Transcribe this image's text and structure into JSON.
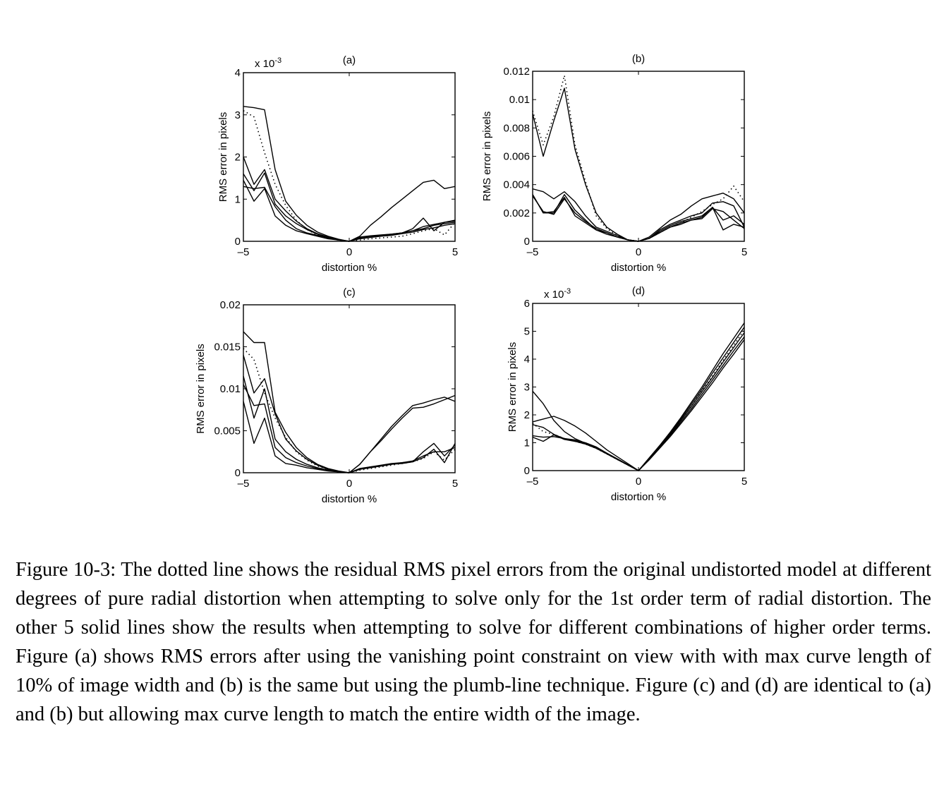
{
  "chart_data": [
    {
      "type": "line",
      "title": "(a)",
      "xlabel": "distortion %",
      "ylabel": "RMS error in pixels",
      "scale_note": "x 10",
      "scale_exp": "-3",
      "xlim": [
        -5,
        5
      ],
      "ylim": [
        0,
        4
      ],
      "xticks": [
        "-5",
        "0",
        "5"
      ],
      "yticks": [
        "0",
        "1",
        "2",
        "3",
        "4"
      ],
      "ytick_values": [
        0,
        1,
        2,
        3,
        4
      ],
      "x": [
        -5,
        -4.5,
        -4,
        -3.5,
        -3,
        -2.5,
        -2,
        -1.5,
        -1,
        -0.5,
        0,
        0.5,
        1,
        1.5,
        2,
        2.5,
        3,
        3.5,
        4,
        4.5,
        5
      ],
      "series": [
        {
          "style": "dotted",
          "values": [
            3.1,
            2.95,
            2.1,
            1.35,
            0.85,
            0.5,
            0.28,
            0.15,
            0.07,
            0.03,
            0,
            0.03,
            0.06,
            0.08,
            0.1,
            0.12,
            0.18,
            0.25,
            0.3,
            0.15,
            0.45
          ]
        },
        {
          "style": "solid",
          "values": [
            3.2,
            3.17,
            3.12,
            1.7,
            0.95,
            0.62,
            0.38,
            0.22,
            0.12,
            0.05,
            0,
            0.12,
            0.38,
            0.58,
            0.8,
            1.0,
            1.2,
            1.4,
            1.45,
            1.25,
            1.3
          ]
        },
        {
          "style": "solid",
          "values": [
            2.0,
            1.35,
            1.7,
            1.0,
            0.72,
            0.48,
            0.3,
            0.18,
            0.1,
            0.04,
            0,
            0.1,
            0.13,
            0.15,
            0.17,
            0.2,
            0.3,
            0.55,
            0.25,
            0.45,
            0.5
          ]
        },
        {
          "style": "solid",
          "values": [
            1.6,
            1.2,
            1.62,
            0.88,
            0.6,
            0.42,
            0.28,
            0.17,
            0.09,
            0.04,
            0,
            0.08,
            0.12,
            0.14,
            0.17,
            0.2,
            0.25,
            0.35,
            0.4,
            0.45,
            0.48
          ]
        },
        {
          "style": "solid",
          "values": [
            1.45,
            0.95,
            1.25,
            0.6,
            0.38,
            0.25,
            0.18,
            0.12,
            0.06,
            0.03,
            0,
            0.07,
            0.1,
            0.13,
            0.16,
            0.2,
            0.25,
            0.3,
            0.38,
            0.42,
            0.45
          ]
        },
        {
          "style": "solid",
          "values": [
            1.3,
            1.25,
            1.28,
            0.82,
            0.5,
            0.3,
            0.2,
            0.14,
            0.08,
            0.03,
            0,
            0.06,
            0.09,
            0.12,
            0.14,
            0.18,
            0.22,
            0.28,
            0.32,
            0.38,
            0.42
          ]
        }
      ]
    },
    {
      "type": "line",
      "title": "(b)",
      "xlabel": "distortion %",
      "ylabel": "RMS error in pixels",
      "xlim": [
        -5,
        5
      ],
      "ylim": [
        0,
        0.012
      ],
      "xticks": [
        "-5",
        "0",
        "5"
      ],
      "yticks": [
        "0",
        "0.002",
        "0.004",
        "0.006",
        "0.008",
        "0.01",
        "0.012"
      ],
      "ytick_values": [
        0,
        0.002,
        0.004,
        0.006,
        0.008,
        0.01,
        0.012
      ],
      "x": [
        -5,
        -4.5,
        -4,
        -3.5,
        -3,
        -2.5,
        -2,
        -1.5,
        -1,
        -0.5,
        0,
        0.5,
        1,
        1.5,
        2,
        2.5,
        3,
        3.5,
        4,
        4.5,
        5
      ],
      "series": [
        {
          "style": "dotted",
          "values": [
            0.0092,
            0.0068,
            0.0088,
            0.0117,
            0.0068,
            0.0042,
            0.0018,
            0.0009,
            0.0004,
            0.0001,
            0,
            0.0002,
            0.0006,
            0.001,
            0.0013,
            0.0017,
            0.0021,
            0.0026,
            0.003,
            0.0039,
            0.0028
          ]
        },
        {
          "style": "solid",
          "values": [
            0.009,
            0.006,
            0.0085,
            0.0108,
            0.0065,
            0.004,
            0.002,
            0.001,
            0.0005,
            0.0001,
            0,
            0.0003,
            0.0009,
            0.0015,
            0.0019,
            0.0025,
            0.003,
            0.0032,
            0.0034,
            0.003,
            0.002
          ]
        },
        {
          "style": "solid",
          "values": [
            0.0037,
            0.0035,
            0.003,
            0.0035,
            0.0028,
            0.0018,
            0.001,
            0.0007,
            0.0004,
            0.0001,
            0,
            0.0002,
            0.0008,
            0.0012,
            0.0015,
            0.0018,
            0.002,
            0.0027,
            0.0028,
            0.0025,
            0.001
          ]
        },
        {
          "style": "solid",
          "values": [
            0.0033,
            0.002,
            0.002,
            0.0033,
            0.0022,
            0.0015,
            0.0008,
            0.0006,
            0.0003,
            0.0001,
            0,
            0.0002,
            0.0007,
            0.0011,
            0.0014,
            0.0016,
            0.0018,
            0.0024,
            0.0015,
            0.0018,
            0.0012
          ]
        },
        {
          "style": "solid",
          "values": [
            0.0032,
            0.0021,
            0.0019,
            0.003,
            0.002,
            0.0014,
            0.0009,
            0.0006,
            0.0003,
            0.0001,
            0,
            0.0002,
            0.0006,
            0.001,
            0.0013,
            0.0015,
            0.0017,
            0.0024,
            0.0008,
            0.0012,
            0.001
          ]
        },
        {
          "style": "solid",
          "values": [
            0.0033,
            0.002,
            0.0021,
            0.0031,
            0.0018,
            0.0013,
            0.0008,
            0.0005,
            0.0003,
            0.0001,
            0,
            0.0002,
            0.0006,
            0.001,
            0.0012,
            0.0015,
            0.0016,
            0.0023,
            0.0021,
            0.0015,
            0.0009
          ]
        }
      ]
    },
    {
      "type": "line",
      "title": "(c)",
      "xlabel": "distortion %",
      "ylabel": "RMS error in pixels",
      "xlim": [
        -5,
        5
      ],
      "ylim": [
        0,
        0.02
      ],
      "xticks": [
        "-5",
        "0",
        "5"
      ],
      "yticks": [
        "0",
        "0.005",
        "0.01",
        "0.015",
        "0.02"
      ],
      "ytick_values": [
        0,
        0.005,
        0.01,
        0.015,
        0.02
      ],
      "x": [
        -5,
        -4.5,
        -4,
        -3.5,
        -3,
        -2.5,
        -2,
        -1.5,
        -1,
        -0.5,
        0,
        0.5,
        1,
        1.5,
        2,
        2.5,
        3,
        3.5,
        4,
        4.5,
        5
      ],
      "series": [
        {
          "style": "dotted",
          "values": [
            0.0148,
            0.0135,
            0.0095,
            0.0065,
            0.0042,
            0.0025,
            0.0015,
            0.0008,
            0.0004,
            0.0001,
            0,
            0.0003,
            0.0005,
            0.0007,
            0.0009,
            0.0011,
            0.0013,
            0.0017,
            0.0025,
            0.0015,
            0.0028
          ]
        },
        {
          "style": "solid",
          "values": [
            0.0168,
            0.0155,
            0.0155,
            0.0072,
            0.0048,
            0.003,
            0.0018,
            0.001,
            0.0005,
            0.0002,
            0,
            0.001,
            0.0025,
            0.004,
            0.0055,
            0.0068,
            0.008,
            0.0083,
            0.0087,
            0.009,
            0.0085
          ]
        },
        {
          "style": "solid",
          "values": [
            0.014,
            0.0095,
            0.0112,
            0.007,
            0.004,
            0.0026,
            0.0016,
            0.0009,
            0.0004,
            0.0001,
            0,
            0.001,
            0.0025,
            0.0038,
            0.0052,
            0.0065,
            0.0077,
            0.0078,
            0.0082,
            0.0087,
            0.0092
          ]
        },
        {
          "style": "solid",
          "values": [
            0.0115,
            0.0065,
            0.01,
            0.004,
            0.0025,
            0.0016,
            0.001,
            0.0006,
            0.0003,
            0.0001,
            0,
            0.0004,
            0.0007,
            0.0008,
            0.001,
            0.0012,
            0.0013,
            0.0025,
            0.0035,
            0.002,
            0.0033
          ]
        },
        {
          "style": "solid",
          "values": [
            0.0085,
            0.0035,
            0.0065,
            0.002,
            0.0011,
            0.0009,
            0.0006,
            0.0004,
            0.0002,
            0.0001,
            0,
            0.0004,
            0.0006,
            0.0008,
            0.001,
            0.0011,
            0.0013,
            0.0018,
            0.0028,
            0.0012,
            0.0035
          ]
        },
        {
          "style": "solid",
          "values": [
            0.0105,
            0.008,
            0.0082,
            0.003,
            0.0018,
            0.0012,
            0.0008,
            0.0005,
            0.0003,
            0.0001,
            0,
            0.0005,
            0.0007,
            0.0009,
            0.0011,
            0.0012,
            0.0014,
            0.002,
            0.0025,
            0.0025,
            0.003
          ]
        }
      ]
    },
    {
      "type": "line",
      "title": "(d)",
      "xlabel": "distortion %",
      "ylabel": "RMS error in pixels",
      "scale_note": "x 10",
      "scale_exp": "-3",
      "xlim": [
        -5,
        5
      ],
      "ylim": [
        0,
        6
      ],
      "xticks": [
        "-5",
        "0",
        "5"
      ],
      "yticks": [
        "0",
        "1",
        "2",
        "3",
        "4",
        "5",
        "6"
      ],
      "ytick_values": [
        0,
        1,
        2,
        3,
        4,
        5,
        6
      ],
      "x": [
        -5,
        -4.5,
        -4,
        -3.5,
        -3,
        -2.5,
        -2,
        -1.5,
        -1,
        -0.5,
        0,
        0.5,
        1,
        1.5,
        2,
        2.5,
        3,
        3.5,
        4,
        4.5,
        5
      ],
      "series": [
        {
          "style": "dotted",
          "values": [
            1.7,
            1.4,
            1.3,
            1.15,
            1.05,
            0.95,
            0.8,
            0.6,
            0.4,
            0.2,
            0,
            0.4,
            0.85,
            1.3,
            1.8,
            2.3,
            2.85,
            3.4,
            3.95,
            4.5,
            5.05
          ]
        },
        {
          "style": "solid",
          "values": [
            2.85,
            2.4,
            1.8,
            1.4,
            1.15,
            0.98,
            0.82,
            0.62,
            0.42,
            0.21,
            0,
            0.45,
            0.9,
            1.38,
            1.9,
            2.45,
            3.0,
            3.6,
            4.2,
            4.75,
            5.3
          ]
        },
        {
          "style": "solid",
          "values": [
            1.75,
            1.85,
            1.95,
            1.8,
            1.6,
            1.35,
            1.05,
            0.75,
            0.5,
            0.25,
            0,
            0.42,
            0.88,
            1.35,
            1.85,
            2.38,
            2.92,
            3.5,
            4.05,
            4.6,
            5.15
          ]
        },
        {
          "style": "solid",
          "values": [
            1.65,
            1.55,
            1.3,
            1.15,
            1.1,
            1.0,
            0.85,
            0.63,
            0.42,
            0.21,
            0,
            0.41,
            0.85,
            1.3,
            1.8,
            2.3,
            2.83,
            3.35,
            3.9,
            4.42,
            4.95
          ]
        },
        {
          "style": "solid",
          "values": [
            1.2,
            1.05,
            1.28,
            1.12,
            1.05,
            0.95,
            0.8,
            0.6,
            0.4,
            0.2,
            0,
            0.4,
            0.82,
            1.26,
            1.74,
            2.22,
            2.74,
            3.25,
            3.78,
            4.3,
            4.8
          ]
        },
        {
          "style": "solid",
          "values": [
            1.25,
            1.2,
            1.22,
            1.15,
            1.08,
            0.97,
            0.82,
            0.62,
            0.41,
            0.2,
            0,
            0.38,
            0.8,
            1.22,
            1.68,
            2.15,
            2.65,
            3.15,
            3.68,
            4.18,
            4.7
          ]
        }
      ]
    }
  ],
  "caption": "Figure 10-3: The dotted line shows the residual RMS pixel errors from the original undistorted model at different degrees of pure radial distortion when attempting to solve only for the 1st order term of radial distortion. The other 5 solid lines show the results when attempting to solve for different combinations of higher order terms. Figure (a) shows RMS errors after using the vanishing point constraint on view with with max curve length of 10% of image width and (b) is the same but using the plumb-line technique. Figure (c) and (d) are identical to (a) and (b) but allowing max curve length to match the entire width of the image."
}
